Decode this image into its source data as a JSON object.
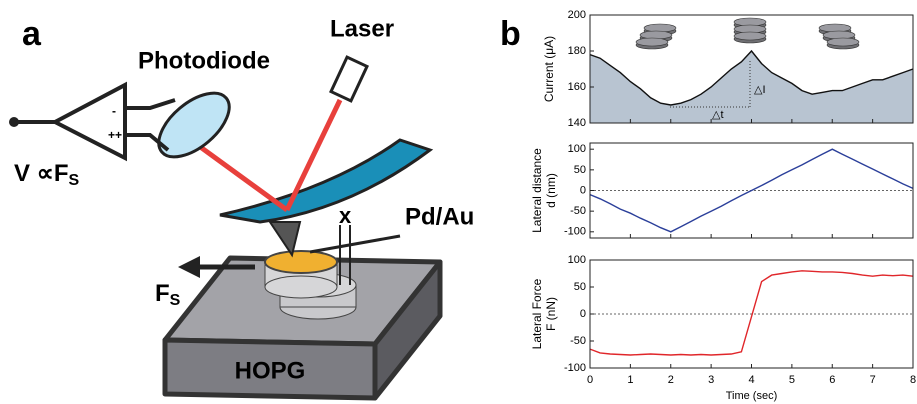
{
  "diagram": {
    "panel_a": "a",
    "panel_b": "b",
    "photodiode": "Photodiode",
    "laser": "Laser",
    "pd_au": "Pd/Au",
    "x": "x",
    "hopg": "HOPG",
    "v_label": "V ∝F",
    "v_sub": "S",
    "fs_label": "F",
    "fs_sub": "S"
  },
  "chart_data": [
    {
      "type": "line",
      "ylabel": [
        "Current (μA)"
      ],
      "color": "#111111",
      "area_color": "#b8c4d1",
      "annotations": [
        "△I",
        "△t"
      ],
      "x": [
        0,
        0.25,
        0.5,
        0.75,
        1,
        1.25,
        1.5,
        1.75,
        2,
        2.25,
        2.5,
        2.75,
        3,
        3.25,
        3.5,
        3.75,
        4,
        4.25,
        4.5,
        4.75,
        5,
        5.25,
        5.5,
        5.75,
        6,
        6.25,
        6.5,
        6.75,
        7,
        7.25,
        7.5,
        7.75,
        8
      ],
      "values": [
        178,
        176,
        172,
        168,
        163,
        159,
        154,
        151,
        150,
        151,
        153,
        156,
        160,
        165,
        170,
        174,
        180,
        173,
        168,
        165,
        162,
        158,
        156,
        157,
        158,
        158,
        160,
        162,
        164,
        164,
        166,
        168,
        170
      ],
      "xlim": [
        0,
        8
      ],
      "ylim": [
        140,
        200
      ],
      "yticks": [
        140,
        160,
        180,
        200
      ]
    },
    {
      "type": "line",
      "ylabel": [
        "Lateral distance",
        "d (nm)"
      ],
      "color": "#2b3f9a",
      "zero_line": true,
      "x": [
        0,
        0.25,
        0.5,
        0.75,
        1,
        1.25,
        1.5,
        1.75,
        2,
        2.25,
        2.5,
        2.75,
        3,
        3.25,
        3.5,
        3.75,
        4,
        4.25,
        4.5,
        4.75,
        5,
        5.25,
        5.5,
        5.75,
        6,
        6.25,
        6.5,
        6.75,
        7,
        7.25,
        7.5,
        7.75,
        8
      ],
      "values": [
        -10,
        -20,
        -32,
        -45,
        -55,
        -67,
        -78,
        -90,
        -100,
        -88,
        -75,
        -62,
        -50,
        -38,
        -25,
        -12,
        0,
        12,
        25,
        38,
        50,
        62,
        75,
        88,
        100,
        88,
        76,
        64,
        52,
        40,
        28,
        16,
        5
      ],
      "xlim": [
        0,
        8
      ],
      "ylim": [
        -115,
        115
      ],
      "yticks": [
        -100,
        -50,
        0,
        50,
        100
      ]
    },
    {
      "type": "line",
      "ylabel": [
        "Lateral Force",
        "F (nN)"
      ],
      "xlabel": "Time (sec)",
      "color": "#e0262a",
      "zero_line": true,
      "x": [
        0,
        0.25,
        0.5,
        0.75,
        1,
        1.25,
        1.5,
        1.75,
        2,
        2.25,
        2.5,
        2.75,
        3,
        3.25,
        3.5,
        3.75,
        4,
        4.25,
        4.5,
        4.75,
        5,
        5.25,
        5.5,
        5.75,
        6,
        6.25,
        6.5,
        6.75,
        7,
        7.25,
        7.5,
        7.75,
        8
      ],
      "values": [
        -65,
        -72,
        -74,
        -75,
        -76,
        -75,
        -74,
        -75,
        -76,
        -75,
        -76,
        -75,
        -76,
        -75,
        -74,
        -70,
        -5,
        60,
        72,
        75,
        78,
        80,
        79,
        78,
        78,
        77,
        75,
        72,
        70,
        72,
        71,
        72,
        70
      ],
      "xlim": [
        0,
        8
      ],
      "ylim": [
        -100,
        100
      ],
      "yticks": [
        -100,
        -50,
        0,
        50,
        100
      ],
      "xticks": [
        0,
        1,
        2,
        3,
        4,
        5,
        6,
        7,
        8
      ]
    }
  ]
}
